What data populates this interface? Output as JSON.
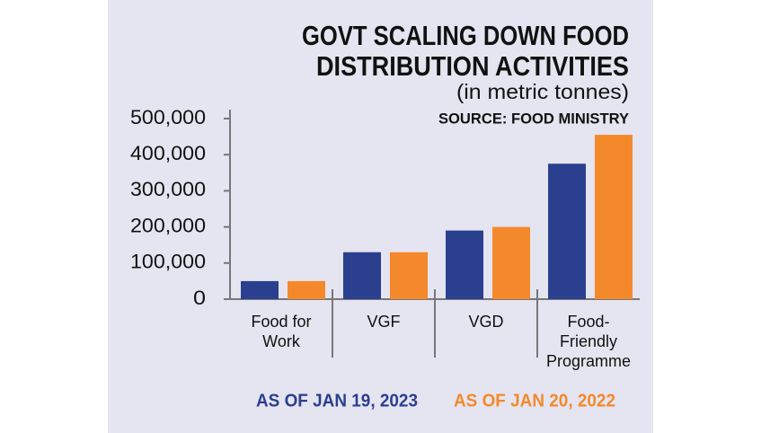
{
  "chart_data": {
    "type": "bar",
    "title": [
      "GOVT SCALING DOWN FOOD",
      "DISTRIBUTION ACTIVITIES"
    ],
    "subtitle": "(in metric tonnes)",
    "source": "SOURCE: FOOD MINISTRY",
    "categories": [
      [
        "Food for",
        "Work"
      ],
      [
        "VGF"
      ],
      [
        "VGD"
      ],
      [
        "Food-",
        "Friendly",
        "Programme"
      ]
    ],
    "series": [
      {
        "name": "AS OF JAN 19, 2023",
        "color": "#2b3f8f",
        "values": [
          50000,
          130000,
          190000,
          375000
        ]
      },
      {
        "name": "AS OF JAN 20, 2022",
        "color": "#f4892b",
        "values": [
          50000,
          130000,
          200000,
          455000
        ]
      }
    ],
    "ylim": [
      0,
      500000
    ],
    "yticks": [
      0,
      {
        "value": 100000,
        "label": "100,000"
      },
      {
        "value": 200000,
        "label": "200,000"
      },
      {
        "value": 300000,
        "label": "300,000"
      },
      {
        "value": 400000,
        "label": "400,000"
      },
      {
        "value": 500000,
        "label": "500,000"
      }
    ],
    "legend": "bottom"
  }
}
